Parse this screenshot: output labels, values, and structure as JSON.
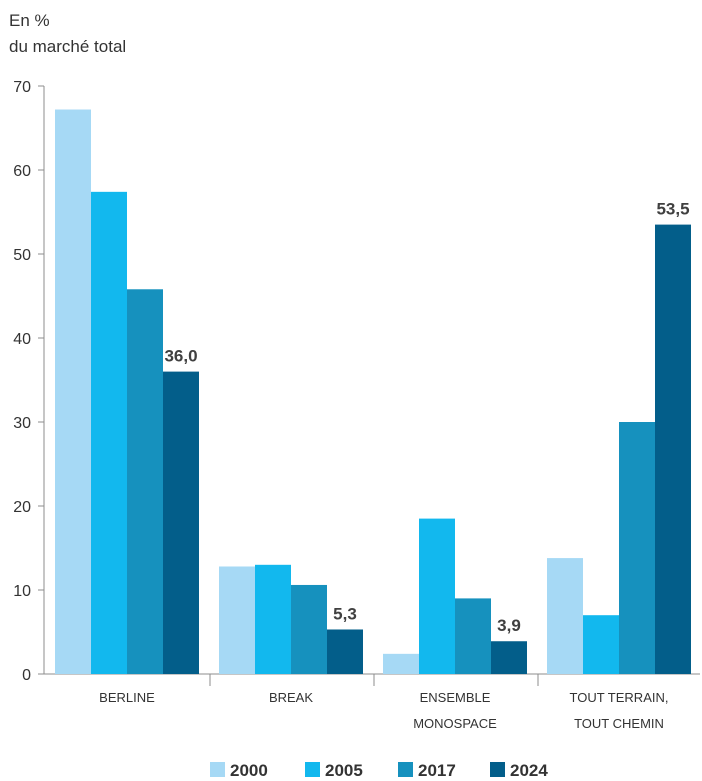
{
  "chart_data": {
    "type": "bar",
    "ylabel_lines": [
      "En %",
      "du marché total"
    ],
    "categories": [
      [
        "BERLINE"
      ],
      [
        "BREAK"
      ],
      [
        "ENSEMBLE",
        "MONOSPACE"
      ],
      [
        "TOUT TERRAIN,",
        "TOUT CHEMIN"
      ]
    ],
    "series": [
      {
        "name": "2000",
        "color": "#a6d9f5",
        "values": [
          67.2,
          12.8,
          2.4,
          13.8
        ]
      },
      {
        "name": "2005",
        "color": "#12b8ee",
        "values": [
          57.4,
          13.0,
          18.5,
          7.0
        ]
      },
      {
        "name": "2017",
        "color": "#1691be",
        "values": [
          45.8,
          10.6,
          9.0,
          30.0
        ]
      },
      {
        "name": "2024",
        "color": "#035e8a",
        "values": [
          36.0,
          5.3,
          3.9,
          53.5
        ]
      }
    ],
    "data_labels": [
      "36,0",
      "5,3",
      "3,9",
      "53,5"
    ],
    "ylim": [
      0,
      70
    ],
    "yticks": [
      0,
      10,
      20,
      30,
      40,
      50,
      60,
      70
    ],
    "grid": false,
    "legend": "bottom"
  }
}
